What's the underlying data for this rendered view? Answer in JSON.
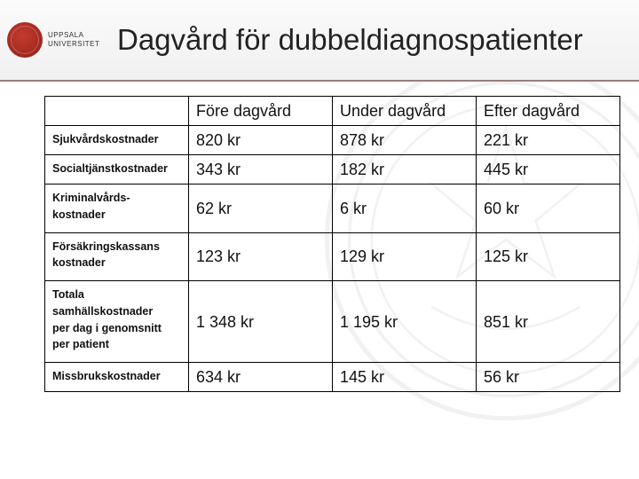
{
  "logo": {
    "top": "UPPSALA",
    "bottom": "UNIVERSITET"
  },
  "title": "Dagvård för dubbeldiagnospatienter",
  "table": {
    "columns": [
      "",
      "Före dagvård",
      "Under dagvård",
      "Efter dagvård"
    ],
    "rows": [
      {
        "label": "Sjukvårdskostnader",
        "values": [
          "820 kr",
          "878 kr",
          "221 kr"
        ]
      },
      {
        "label": "Socialtjänstkostnader",
        "values": [
          "343 kr",
          "182 kr",
          "445 kr"
        ]
      },
      {
        "label": "Kriminalvårds-\nkostnader",
        "values": [
          "62 kr",
          "6 kr",
          "60 kr"
        ]
      },
      {
        "label": "Försäkringskassans\nkostnader",
        "values": [
          "123 kr",
          "129 kr",
          "125 kr"
        ]
      },
      {
        "label": "Totala\nsamhällskostnader\nper dag i genomsnitt\nper patient",
        "values": [
          "1 348 kr",
          "1 195 kr",
          "851 kr"
        ]
      },
      {
        "label": "Missbrukskostnader",
        "values": [
          "634 kr",
          "145 kr",
          "56 kr"
        ]
      }
    ]
  },
  "style": {
    "background": "#ffffff",
    "header_border": "#9a7c7c",
    "seal_color": "#a52b20",
    "cell_border": "#000000",
    "title_fontsize": 33,
    "header_fontsize": 18,
    "value_fontsize": 18,
    "label_fontsize": 12.5,
    "slide_width": 720,
    "slide_height": 540
  }
}
